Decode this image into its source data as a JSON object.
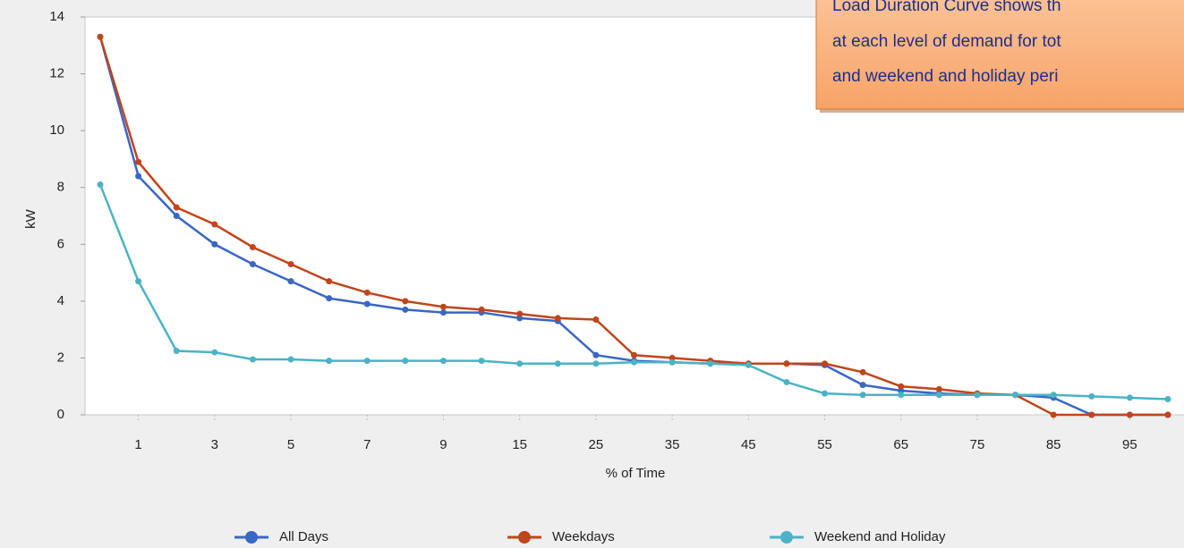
{
  "chart_data": {
    "type": "line",
    "y_label": "kW",
    "x_label": "% of Time",
    "annotation": [
      "Load Duration Curve shows th",
      "at each level of demand for tot",
      "and weekend and holiday peri"
    ],
    "categories": [
      null,
      "1",
      null,
      "3",
      null,
      "5",
      null,
      "7",
      null,
      "9",
      null,
      "15",
      null,
      "25",
      null,
      "35",
      null,
      "45",
      null,
      "55",
      null,
      "65",
      null,
      "75",
      null,
      "85",
      null,
      "95",
      null
    ],
    "series": [
      {
        "name": "All Days",
        "color": "#3a66c4",
        "values": [
          13.3,
          8.4,
          7.0,
          6.0,
          5.3,
          4.7,
          4.1,
          3.9,
          3.7,
          3.6,
          3.6,
          3.4,
          3.3,
          2.1,
          1.9,
          1.85,
          1.8,
          1.8,
          1.8,
          1.75,
          1.05,
          0.85,
          0.75,
          0.7,
          0.7,
          0.6,
          0,
          0,
          0
        ]
      },
      {
        "name": "Weekdays",
        "color": "#c0451a",
        "values": [
          13.3,
          8.9,
          7.3,
          6.7,
          5.9,
          5.3,
          4.7,
          4.3,
          4.0,
          3.8,
          3.7,
          3.55,
          3.4,
          3.35,
          2.1,
          2.0,
          1.9,
          1.8,
          1.8,
          1.8,
          1.5,
          1.0,
          0.9,
          0.75,
          0.7,
          0,
          0,
          0,
          0
        ]
      },
      {
        "name": "Weekend and Holiday",
        "color": "#4ab3c4",
        "values": [
          8.1,
          4.7,
          2.25,
          2.2,
          1.95,
          1.95,
          1.9,
          1.9,
          1.9,
          1.9,
          1.9,
          1.8,
          1.8,
          1.8,
          1.85,
          1.85,
          1.8,
          1.75,
          1.15,
          0.75,
          0.7,
          0.7,
          0.7,
          0.7,
          0.7,
          0.7,
          0.65,
          0.6,
          0.55
        ]
      }
    ],
    "ylim": [
      0,
      14
    ],
    "yticks": [
      0,
      2,
      4,
      6,
      8,
      10,
      12,
      14
    ],
    "grid": false,
    "legend": "bottom"
  }
}
